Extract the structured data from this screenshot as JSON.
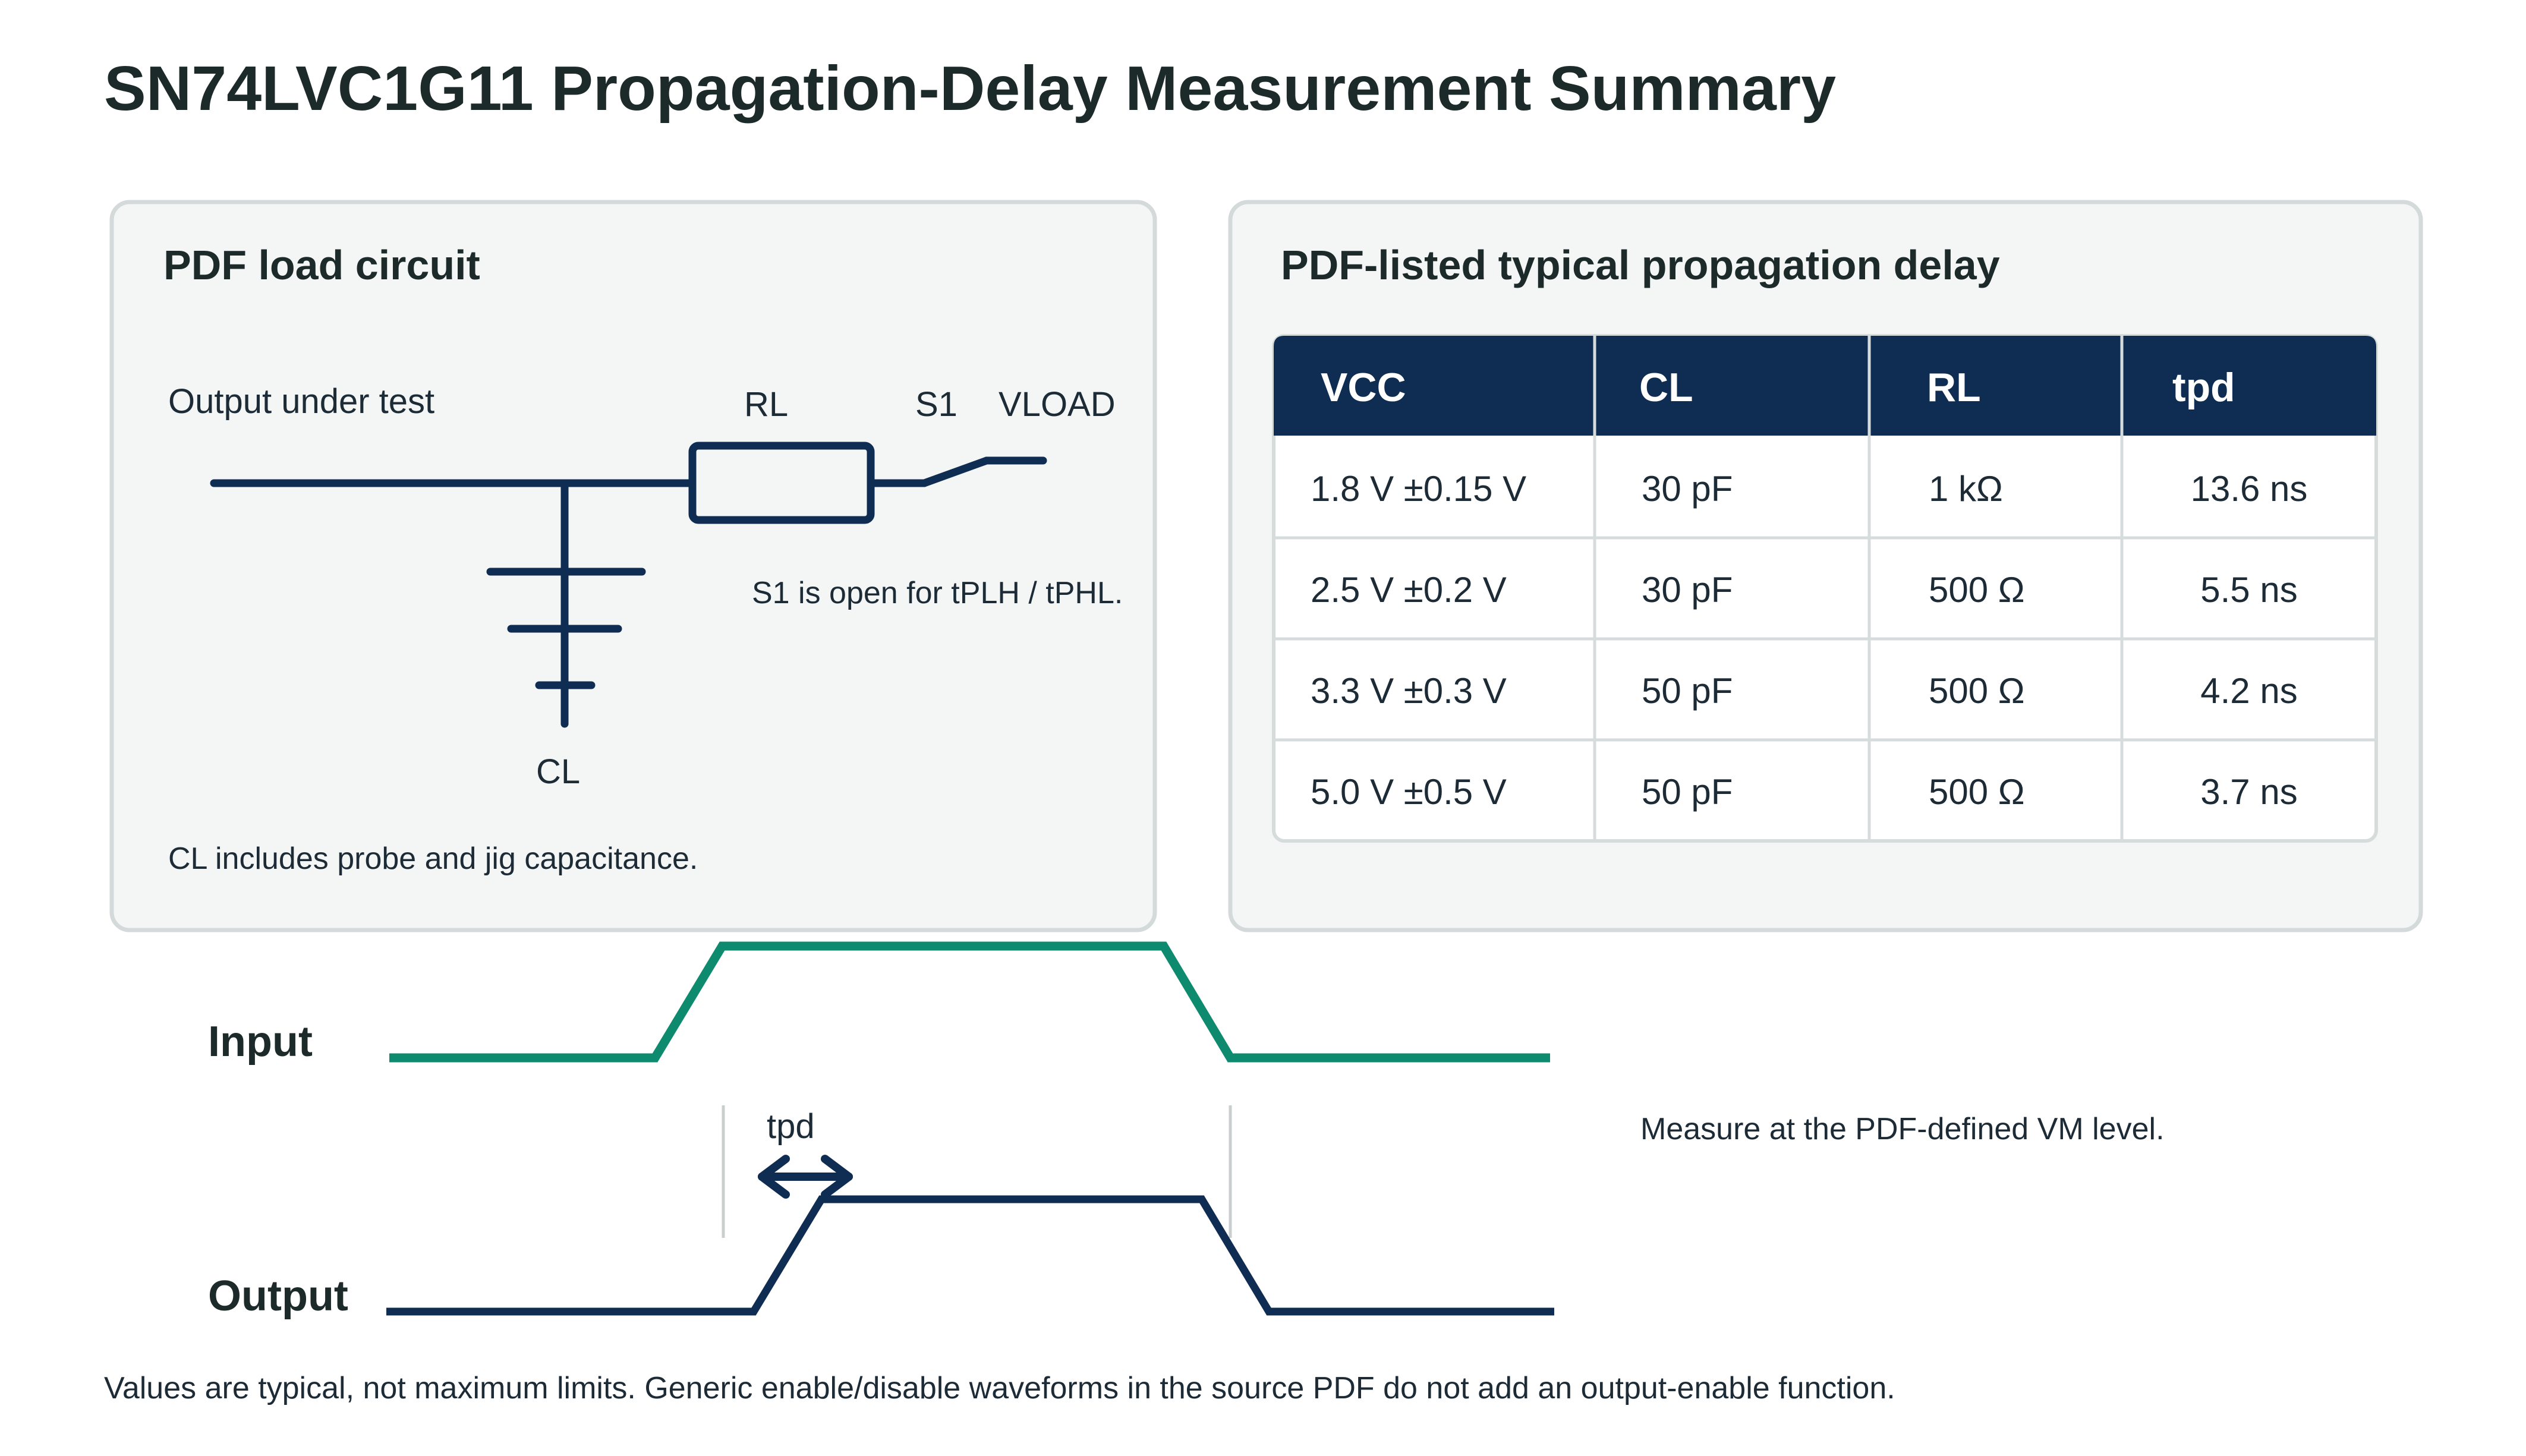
{
  "title": "SN74LVC1G11 Propagation-Delay Measurement Summary",
  "colors": {
    "title": "#1c2b2a",
    "ink": "#1c2b36",
    "navy": "#0f2d52",
    "teal": "#0e8a6e",
    "panel_fill": "#f4f6f6",
    "panel_border": "#d3dad9",
    "table_border": "#d6dcdc",
    "marker": "#c9cfcf"
  },
  "load_circuit": {
    "heading": "PDF load circuit",
    "output_label": "Output under test",
    "rl_label": "RL",
    "s1_label": "S1",
    "vload_label": "VLOAD",
    "cl_label": "CL",
    "s1_note": "S1 is open for tPLH / tPHL.",
    "cl_note": "CL includes probe and jig capacitance."
  },
  "delay_table": {
    "heading": "PDF-listed typical propagation delay",
    "headers": [
      "VCC",
      "CL",
      "RL",
      "tpd"
    ],
    "rows": [
      [
        "1.8 V ±0.15 V",
        "30 pF",
        "1 kΩ",
        "13.6 ns"
      ],
      [
        "2.5 V ±0.2 V",
        "30 pF",
        "500 Ω",
        "5.5 ns"
      ],
      [
        "3.3 V ±0.3 V",
        "50 pF",
        "500 Ω",
        "4.2 ns"
      ],
      [
        "5.0 V ±0.5 V",
        "50 pF",
        "500 Ω",
        "3.7 ns"
      ]
    ]
  },
  "waveforms": {
    "input_label": "Input",
    "output_label": "Output",
    "tpd_label": "tpd",
    "note": "Measure at the PDF-defined VM level."
  },
  "footnote": "Values are typical, not maximum limits. Generic enable/disable waveforms in the source PDF do not add an output-enable function."
}
